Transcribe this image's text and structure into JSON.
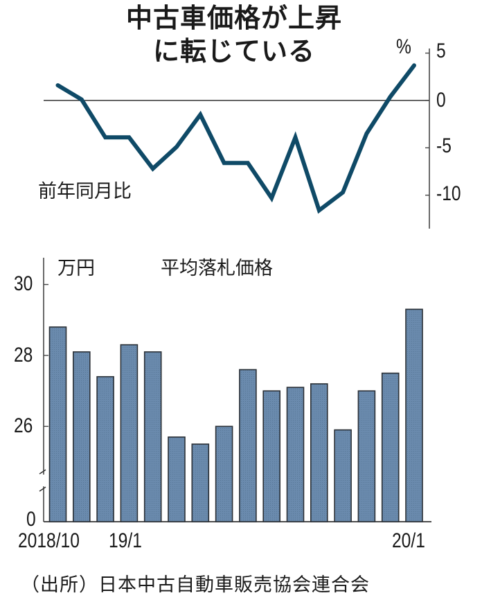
{
  "title": {
    "line1": "中古車価格が上昇",
    "line2": "に転じている"
  },
  "line_chart": {
    "series_label": "前年同月比",
    "unit": "%",
    "y_ticks": [
      "5",
      "0",
      "-5",
      "-10"
    ],
    "color": "#0f4a67"
  },
  "bar_chart": {
    "unit": "万円",
    "series_label": "平均落札価格",
    "y_ticks": [
      "30",
      "28",
      "26",
      "0"
    ],
    "x_labels": {
      "start": "2018/10",
      "mid": "19/1",
      "end": "20/1"
    },
    "color": "#6a8aad"
  },
  "source": "（出所）日本中古自動車販売協会連合会",
  "chart_data": [
    {
      "type": "line",
      "title": "中古車価格が上昇に転じている",
      "series_name": "前年同月比",
      "ylabel": "%",
      "x": [
        "2018/10",
        "2018/11",
        "2018/12",
        "2019/1",
        "2019/2",
        "2019/3",
        "2019/4",
        "2019/5",
        "2019/6",
        "2019/7",
        "2019/8",
        "2019/9",
        "2019/10",
        "2019/11",
        "2019/12",
        "2020/1"
      ],
      "values": [
        1.6,
        0.1,
        -3.9,
        -3.9,
        -7.2,
        -4.9,
        -1.5,
        -6.6,
        -6.6,
        -10.3,
        -3.9,
        -11.6,
        -9.7,
        -3.5,
        0.4,
        3.7
      ],
      "ylim": [
        -13,
        5
      ],
      "y_ticks": [
        5,
        0,
        -5,
        -10
      ],
      "zero_line": true,
      "grid": false,
      "legend": "inline label 前年同月比 lower-left"
    },
    {
      "type": "bar",
      "title": "平均落札価格",
      "ylabel": "万円",
      "categories": [
        "2018/10",
        "2018/11",
        "2018/12",
        "2019/1",
        "2019/2",
        "2019/3",
        "2019/4",
        "2019/5",
        "2019/6",
        "2019/7",
        "2019/8",
        "2019/9",
        "2019/10",
        "2019/11",
        "2019/12",
        "2020/1"
      ],
      "x_tick_labels": [
        "2018/10",
        "19/1",
        "20/1"
      ],
      "values": [
        28.8,
        28.1,
        27.4,
        28.3,
        28.1,
        25.7,
        25.5,
        26.0,
        27.6,
        27.0,
        27.1,
        27.2,
        25.9,
        27.0,
        27.5,
        29.3
      ],
      "ylim": [
        0,
        30.7
      ],
      "y_ticks": [
        0,
        26,
        28,
        30
      ],
      "axis_break": "between 0 and 26",
      "grid": false
    }
  ]
}
